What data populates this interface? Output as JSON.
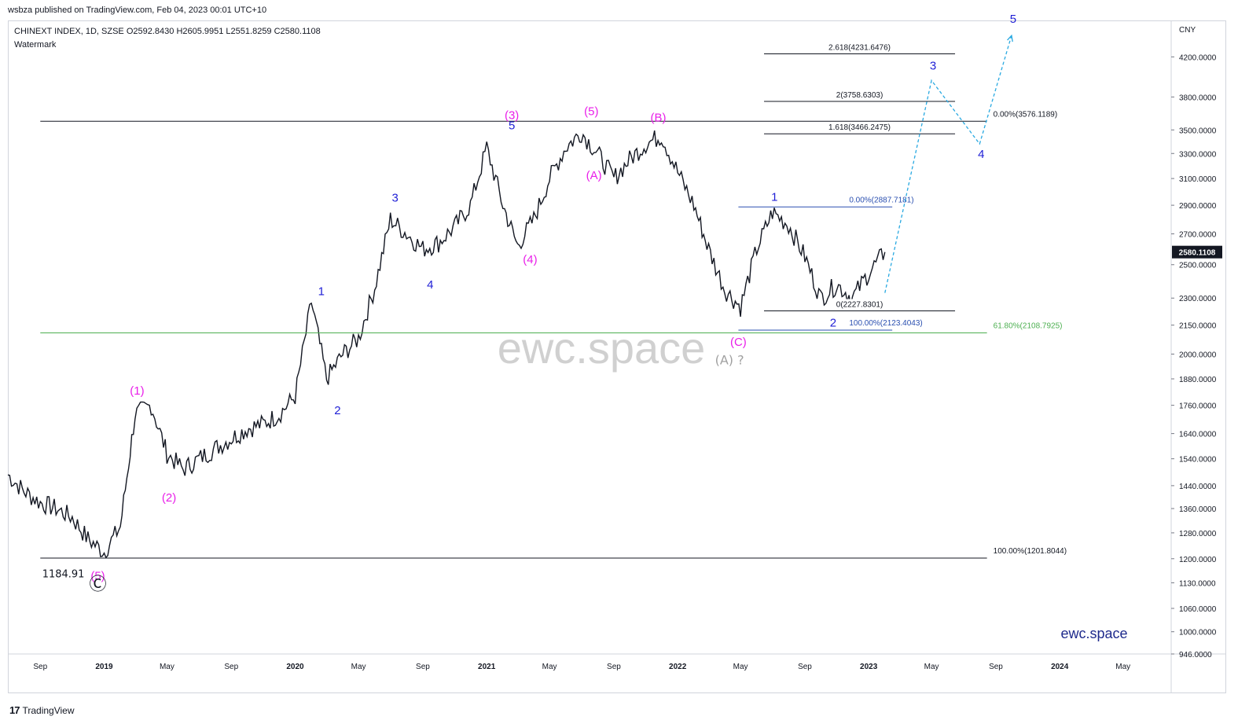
{
  "header": {
    "published": "wsbza published on TradingView.com, Feb 04, 2023 00:01 UTC+10",
    "symbol_line": "CHINEXT INDEX, 1D, SZSE  O2592.8430  H2605.9951  L2551.8259  C2580.1108",
    "watermark_label": "Watermark",
    "currency": "CNY"
  },
  "footer": {
    "brand": "TradingView",
    "brand_icon": "tradingview-logo-icon"
  },
  "colors": {
    "candle": "#131722",
    "magenta": "#e91ee9",
    "blue": "#1f1fd6",
    "projection": "#29a9e1",
    "fib_blue": "#2a4fb0",
    "fib_green": "#4caf50",
    "watermark": "#c8c8c8",
    "price_tag": "#131722"
  },
  "chart_data": {
    "type": "line",
    "scale": "log",
    "ylim": [
      946,
      4600
    ],
    "y_ticks": [
      "4200.0000",
      "3800.0000",
      "3500.0000",
      "3300.0000",
      "3100.0000",
      "2900.0000",
      "2700.0000",
      "2500.0000",
      "2300.0000",
      "2150.0000",
      "2000.0000",
      "1880.0000",
      "1760.0000",
      "1640.0000",
      "1540.0000",
      "1440.0000",
      "1360.0000",
      "1280.0000",
      "1200.0000",
      "1130.0000",
      "1060.0000",
      "1000.0000",
      "946.0000"
    ],
    "x_ticks": [
      "Sep",
      "2019",
      "May",
      "Sep",
      "2020",
      "May",
      "Sep",
      "2021",
      "May",
      "Sep",
      "2022",
      "May",
      "Sep",
      "2023",
      "May",
      "Sep",
      "2024",
      "May"
    ],
    "bold_x_ticks": [
      "2019",
      "2020",
      "2021",
      "2022",
      "2023",
      "2024"
    ],
    "series": [
      {
        "x": [
          "2018-07",
          "2018-08",
          "2018-09",
          "2018-10",
          "2018-11",
          "2018-12",
          "2019-01",
          "2019-02",
          "2019-03",
          "2019-04",
          "2019-05",
          "2019-06",
          "2019-07",
          "2019-08",
          "2019-09",
          "2019-10",
          "2019-11",
          "2019-12",
          "2020-01",
          "2020-02",
          "2020-03",
          "2020-04",
          "2020-05",
          "2020-06",
          "2020-07",
          "2020-08",
          "2020-09",
          "2020-10",
          "2020-11",
          "2020-12",
          "2021-01",
          "2021-02",
          "2021-03",
          "2021-04",
          "2021-05",
          "2021-06",
          "2021-07",
          "2021-08",
          "2021-09",
          "2021-10",
          "2021-11",
          "2021-12",
          "2022-01",
          "2022-02",
          "2022-03",
          "2022-04",
          "2022-05",
          "2022-06",
          "2022-07",
          "2022-08",
          "2022-09",
          "2022-10",
          "2022-11",
          "2022-12",
          "2023-01",
          "2023-02"
        ],
        "values": [
          1480,
          1420,
          1380,
          1360,
          1330,
          1260,
          1220,
          1300,
          1720,
          1760,
          1560,
          1500,
          1540,
          1580,
          1620,
          1660,
          1680,
          1720,
          1800,
          2280,
          1880,
          2000,
          2080,
          2360,
          2800,
          2700,
          2600,
          2640,
          2750,
          2900,
          3350,
          2900,
          2620,
          2800,
          3100,
          3350,
          3480,
          3300,
          3100,
          3250,
          3380,
          3450,
          3150,
          2900,
          2600,
          2350,
          2250,
          2600,
          2850,
          2760,
          2550,
          2300,
          2380,
          2300,
          2450,
          2580
        ]
      }
    ],
    "last_price": "2580.1108",
    "annotations": {
      "wave_labels": [
        {
          "text": "(5)",
          "date": "2018-12-20",
          "price": 1184,
          "color": "magenta"
        },
        {
          "text": "(1)",
          "date": "2019-03-05",
          "price": 1780,
          "color": "magenta"
        },
        {
          "text": "(2)",
          "date": "2019-05-05",
          "price": 1440,
          "color": "magenta"
        },
        {
          "text": "1",
          "date": "2020-02-20",
          "price": 2280,
          "color": "blue"
        },
        {
          "text": "2",
          "date": "2020-03-22",
          "price": 1790,
          "color": "blue"
        },
        {
          "text": "3",
          "date": "2020-07-10",
          "price": 2880,
          "color": "blue"
        },
        {
          "text": "4",
          "date": "2020-09-15",
          "price": 2450,
          "color": "blue"
        },
        {
          "text": "5",
          "date": "2021-02-18",
          "price": 3450,
          "color": "blue"
        },
        {
          "text": "(3)",
          "date": "2021-02-18",
          "price": 3540,
          "color": "magenta"
        },
        {
          "text": "(4)",
          "date": "2021-03-25",
          "price": 2610,
          "color": "magenta"
        },
        {
          "text": "(5)",
          "date": "2021-07-20",
          "price": 3576,
          "color": "magenta"
        },
        {
          "text": "(A)",
          "date": "2021-07-25",
          "price": 3220,
          "color": "magenta"
        },
        {
          "text": "(B)",
          "date": "2021-11-25",
          "price": 3520,
          "color": "magenta"
        },
        {
          "text": "(C)",
          "date": "2022-04-27",
          "price": 2123,
          "color": "magenta"
        },
        {
          "text": "1",
          "date": "2022-07-05",
          "price": 2887,
          "color": "blue"
        },
        {
          "text": "2",
          "date": "2022-10-25",
          "price": 2228,
          "color": "blue"
        }
      ],
      "extra_labels": [
        {
          "text": "(A) ?",
          "date": "2022-04-10",
          "price": 1950,
          "color": "gray"
        },
        {
          "text": "1184.91",
          "date": "2018-10-15",
          "price": 1145,
          "color": "dark"
        },
        {
          "text": "Ⓒ",
          "date": "2018-12-20",
          "price": 1110,
          "color": "dark"
        }
      ],
      "projection": {
        "points": [
          {
            "date": "2023-02-01",
            "price": 2330
          },
          {
            "date": "2023-05-01",
            "price": 3960
          },
          {
            "date": "2023-08-01",
            "price": 3380
          },
          {
            "date": "2023-10-01",
            "price": 4430
          }
        ],
        "labels": [
          "3",
          "4",
          "5"
        ]
      },
      "watermark": "ewc.space",
      "brand_text": "ewc.space",
      "levels": [
        {
          "price": 3576.1189,
          "from": "2018-09-01",
          "to": "2023-08-15",
          "color": "dark",
          "label": "0.00%(3576.1189)",
          "label_at": "right"
        },
        {
          "price": 1201.8044,
          "from": "2018-09-01",
          "to": "2023-08-15",
          "color": "dark",
          "label": "100.00%(1201.8044)",
          "label_at": "right"
        },
        {
          "price": 2108.7925,
          "from": "2018-09-01",
          "to": "2023-08-15",
          "color": "green",
          "label": "61.80%(2108.7925)",
          "label_at": "right"
        },
        {
          "price": 2887.7181,
          "from": "2022-04-27",
          "to": "2023-02-15",
          "color": "fib_blue",
          "label": "0.00%(2887.7181)",
          "label_at": "end"
        },
        {
          "price": 2123.4043,
          "from": "2022-04-27",
          "to": "2023-02-15",
          "color": "fib_blue",
          "label": "100.00%(2123.4043)",
          "label_at": "end"
        },
        {
          "price": 4231.6476,
          "from": "2022-06-15",
          "to": "2023-06-15",
          "color": "dark",
          "label": "2.618(4231.6476)",
          "label_at": "mid"
        },
        {
          "price": 3758.6303,
          "from": "2022-06-15",
          "to": "2023-06-15",
          "color": "dark",
          "label": "2(3758.6303)",
          "label_at": "mid"
        },
        {
          "price": 3466.2475,
          "from": "2022-06-15",
          "to": "2023-06-15",
          "color": "dark",
          "label": "1.618(3466.2475)",
          "label_at": "mid"
        },
        {
          "price": 2227.8301,
          "from": "2022-06-15",
          "to": "2023-06-15",
          "color": "dark",
          "label": "0(2227.8301)",
          "label_at": "mid"
        }
      ]
    }
  }
}
